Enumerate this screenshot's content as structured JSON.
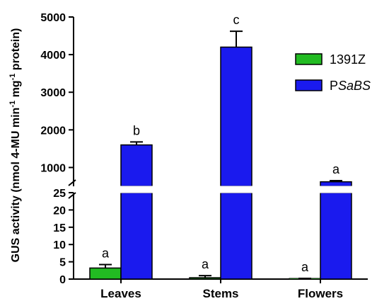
{
  "chart_data": {
    "type": "bar",
    "ylabel": {
      "main": "GUS activity (nmol 4-MU min",
      "sup1": "-1",
      "mid": " mg",
      "sup2": "-1",
      "end": " protein)"
    },
    "categories": [
      "Leaves",
      "Stems",
      "Flowers"
    ],
    "series": [
      {
        "name": "1391Z",
        "color": "#22bb22",
        "values": [
          3.2,
          0.4,
          0.1
        ],
        "errors": [
          1.0,
          0.6,
          0.1
        ],
        "labels": [
          "a",
          "a",
          "a"
        ]
      },
      {
        "name_prefix": "P",
        "name_italic": "SaBS",
        "color": "#1a1aee",
        "values": [
          1600,
          4200,
          620
        ],
        "errors": [
          80,
          420,
          30
        ],
        "labels": [
          "b",
          "c",
          "a"
        ]
      }
    ],
    "y_axis": {
      "broken": true,
      "lower_range": [
        0,
        25
      ],
      "upper_range": [
        500,
        5000
      ],
      "lower_ticks": [
        0,
        5,
        10,
        15,
        20,
        25
      ],
      "upper_ticks": [
        1000,
        2000,
        3000,
        4000,
        5000
      ]
    },
    "grid": false,
    "legend_position": "top-right"
  }
}
